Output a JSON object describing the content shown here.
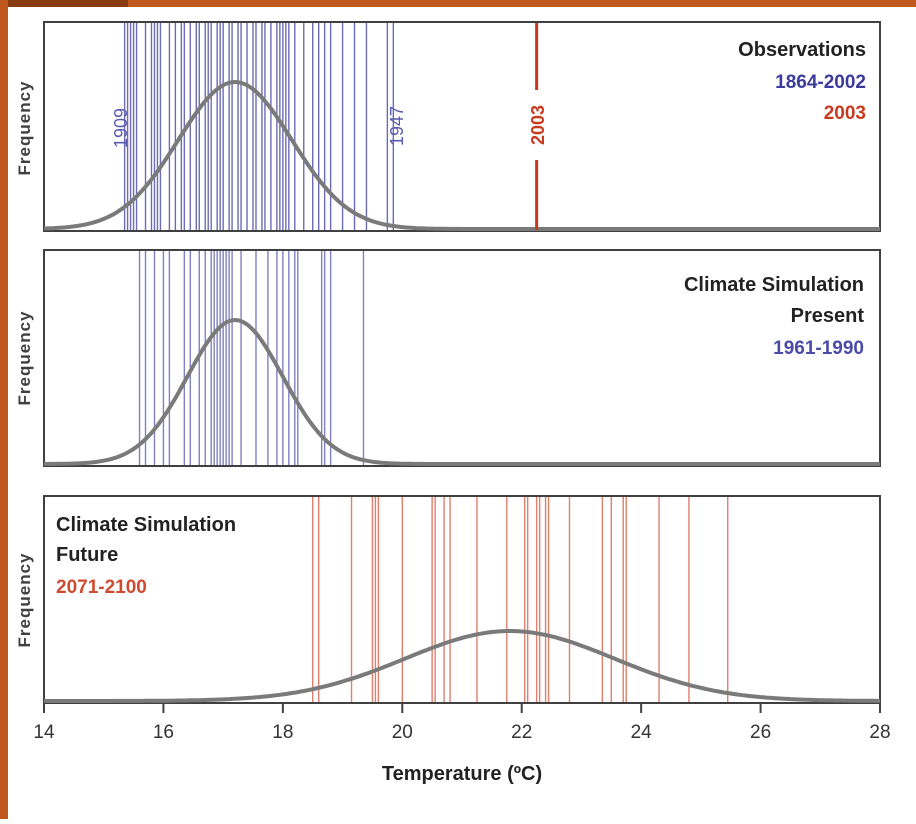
{
  "colors": {
    "observations": "#3b3b9e",
    "simulation_present": "#4a4aa8",
    "simulation_future": "#d04a30",
    "year_2003": "#c83a1e",
    "curve": "#7a7a7a",
    "axis": "#404040",
    "border": "#c0571c"
  },
  "chart_data": {
    "type": "line",
    "xlabel": "Temperature (ºC)",
    "xlim": [
      14,
      28
    ],
    "x_ticks": [
      "14",
      "16",
      "18",
      "20",
      "22",
      "24",
      "26",
      "28"
    ],
    "panels": [
      {
        "ylabel": "Frequency",
        "title": "Observations",
        "legend": [
          {
            "label": "1864-2002",
            "color": "#3b3b9e"
          },
          {
            "label": "2003",
            "color": "#c83a1e"
          }
        ],
        "curve": {
          "mean": 17.2,
          "sd": 0.95,
          "baseline": 14.0
        },
        "year_lines": [
          15.35,
          15.4,
          15.45,
          15.5,
          15.55,
          15.7,
          15.8,
          15.85,
          15.9,
          15.95,
          16.1,
          16.2,
          16.3,
          16.35,
          16.45,
          16.55,
          16.6,
          16.7,
          16.75,
          16.8,
          16.9,
          16.95,
          17.0,
          17.1,
          17.15,
          17.25,
          17.3,
          17.4,
          17.5,
          17.55,
          17.65,
          17.7,
          17.8,
          17.9,
          17.95,
          18.0,
          18.05,
          18.1,
          18.2,
          18.35,
          18.5,
          18.6,
          18.7,
          18.8,
          19.0,
          19.2,
          19.4,
          19.75,
          19.85
        ],
        "annotations": [
          {
            "text": "1909",
            "x": 15.35
          },
          {
            "text": "1947",
            "x": 19.85
          },
          {
            "text": "2003",
            "x": 22.25
          }
        ],
        "highlight_line": 22.25
      },
      {
        "ylabel": "Frequency",
        "title": "Climate Simulation",
        "subtitle": "Present",
        "legend": [
          {
            "label": "1961-1990",
            "color": "#4a4aa8"
          }
        ],
        "curve": {
          "mean": 17.2,
          "sd": 0.8,
          "baseline": 14.0
        },
        "year_lines": [
          15.6,
          15.7,
          15.85,
          16.0,
          16.1,
          16.35,
          16.45,
          16.6,
          16.7,
          16.8,
          16.85,
          16.9,
          16.95,
          17.0,
          17.05,
          17.1,
          17.15,
          17.3,
          17.55,
          17.75,
          17.9,
          18.0,
          18.1,
          18.2,
          18.25,
          18.65,
          18.7,
          18.8,
          19.35
        ]
      },
      {
        "ylabel": "Frequency",
        "title": "Climate Simulation",
        "subtitle": "Future",
        "legend": [
          {
            "label": "2071-2100",
            "color": "#d04a30"
          }
        ],
        "curve": {
          "mean": 21.8,
          "sd": 1.75,
          "baseline": 14.0
        },
        "year_lines": [
          18.5,
          18.6,
          19.15,
          19.5,
          19.55,
          19.6,
          20.0,
          20.5,
          20.55,
          20.7,
          20.8,
          21.25,
          21.75,
          22.05,
          22.1,
          22.25,
          22.3,
          22.4,
          22.45,
          22.8,
          23.35,
          23.5,
          23.7,
          23.75,
          24.3,
          24.8,
          25.45
        ]
      }
    ]
  }
}
